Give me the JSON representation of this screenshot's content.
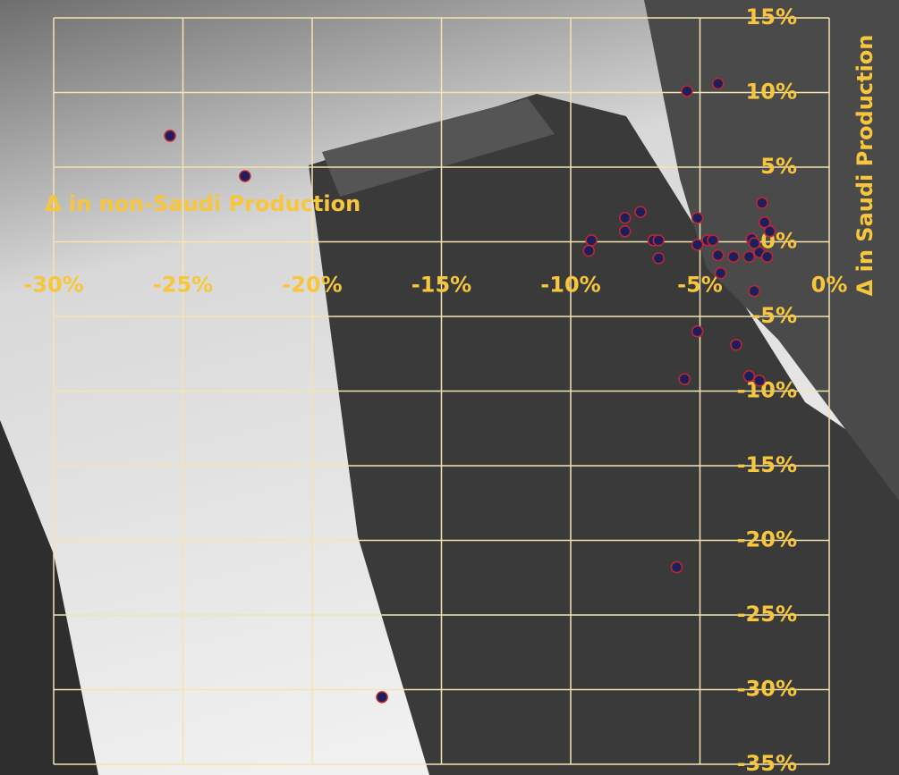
{
  "chart_data": {
    "type": "scatter",
    "xlabel": "Δ in non-Saudi Production",
    "ylabel": "Δ in Saudi Production",
    "x": [
      -25.5,
      -22.6,
      -17.3,
      -5.5,
      -4.3,
      -5.9,
      -5.6,
      -5.1,
      -3.6,
      -3.1,
      -2.7,
      -2.9,
      -2.6,
      -2.5,
      -2.3,
      -5.1,
      -5.1,
      -4.7,
      -4.5,
      -4.3,
      -4.2,
      -3.7,
      -3.1,
      -3.0,
      -2.7,
      -2.4,
      -2.9,
      -7.3,
      -7.9,
      -7.9,
      -6.8,
      -6.6,
      -6.6,
      -9.2,
      -9.3
    ],
    "values": [
      7.1,
      4.4,
      -30.5,
      10.1,
      10.6,
      -21.8,
      -9.2,
      -6.0,
      -6.9,
      -9.0,
      -9.3,
      -3.3,
      2.6,
      1.3,
      0.7,
      1.6,
      -0.2,
      0.1,
      0.1,
      -0.9,
      -2.1,
      -1.0,
      -1.0,
      0.2,
      -0.7,
      -1.0,
      -0.1,
      2.0,
      1.6,
      0.7,
      0.1,
      0.1,
      -1.1,
      0.1,
      -0.6
    ],
    "color": "#1b1f5c",
    "edgecolor": "#c4262e",
    "xlim": [
      -30,
      0
    ],
    "ylim": [
      -35,
      15
    ],
    "xticks": [
      {
        "value": -30,
        "label": "-30%"
      },
      {
        "value": -25,
        "label": "-25%"
      },
      {
        "value": -20,
        "label": "-20%"
      },
      {
        "value": -15,
        "label": "-15%"
      },
      {
        "value": -10,
        "label": "-10%"
      },
      {
        "value": -5,
        "label": "-5%"
      },
      {
        "value": 0,
        "label": "0%"
      }
    ],
    "yticks": [
      {
        "value": 15,
        "label": "15%"
      },
      {
        "value": 10,
        "label": "10%"
      },
      {
        "value": 5,
        "label": "5%"
      },
      {
        "value": 0,
        "label": "0%"
      },
      {
        "value": -5,
        "label": "-5%"
      },
      {
        "value": -10,
        "label": "-10%"
      },
      {
        "value": -15,
        "label": "-15%"
      },
      {
        "value": -20,
        "label": "-20%"
      },
      {
        "value": -25,
        "label": "-25%"
      },
      {
        "value": -30,
        "label": "-30%"
      },
      {
        "value": -35,
        "label": "-35%"
      }
    ],
    "grid": true
  }
}
